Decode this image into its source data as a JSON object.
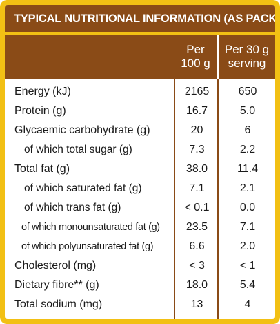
{
  "title": "TYPICAL NUTRITIONAL INFORMATION (AS PACKED)",
  "colors": {
    "brown": "#8a4b17",
    "gold": "#f2c014",
    "text": "#1a1a1a"
  },
  "columns": {
    "per100": [
      "Per",
      "100 g"
    ],
    "serving": [
      "Per 30 g",
      "serving"
    ]
  },
  "rows": [
    {
      "label": "Energy (kJ)",
      "per100": "2165",
      "serving": "650"
    },
    {
      "label": "Protein (g)",
      "per100": "16.7",
      "serving": "5.0"
    },
    {
      "label": "Glycaemic carbohydrate (g)",
      "per100": "20",
      "serving": "6"
    },
    {
      "label": "of which total sugar (g)",
      "per100": "7.3",
      "serving": "2.2"
    },
    {
      "label": "Total fat (g)",
      "per100": "38.0",
      "serving": "11.4"
    },
    {
      "label": "of which saturated fat (g)",
      "per100": "7.1",
      "serving": "2.1"
    },
    {
      "label": "of which trans fat (g)",
      "per100": "< 0.1",
      "serving": "0.0"
    },
    {
      "label": "of which monounsaturated fat (g)",
      "per100": "23.5",
      "serving": "7.1"
    },
    {
      "label": "of which polyunsaturated fat (g)",
      "per100": "6.6",
      "serving": "2.0"
    },
    {
      "label": "Cholesterol (mg)",
      "per100": "< 3",
      "serving": "< 1"
    },
    {
      "label": "Dietary fibre** (g)",
      "per100": "18.0",
      "serving": "5.4"
    },
    {
      "label": "Total sodium (mg)",
      "per100": "13",
      "serving": "4"
    }
  ]
}
